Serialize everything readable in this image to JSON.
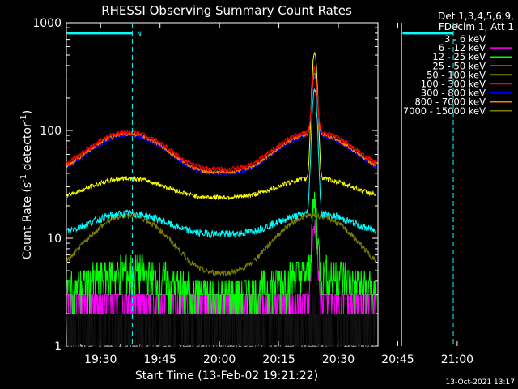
{
  "chart_data": {
    "type": "line",
    "title": "RHESSI Observing Summary Count Rates",
    "xlabel": "Start Time (13-Feb-02 19:21:22)",
    "ylabel_parts": [
      "Count Rate (s",
      "-1",
      " detector",
      "-1",
      ")"
    ],
    "yscale": "log",
    "ylim": [
      1,
      1000
    ],
    "xlim_min": [
      21.37,
      100
    ],
    "x_ticks": [
      {
        "m": 30,
        "label": "19:30"
      },
      {
        "m": 45,
        "label": "19:45"
      },
      {
        "m": 60,
        "label": "20:00"
      },
      {
        "m": 75,
        "label": "20:15"
      },
      {
        "m": 90,
        "label": "20:30"
      },
      {
        "m": 105,
        "label": "20:45"
      },
      {
        "m": 120,
        "label": "21:00"
      }
    ],
    "y_ticks": [
      {
        "v": 1,
        "label": "1"
      },
      {
        "v": 10,
        "label": "10"
      },
      {
        "v": 100,
        "label": "100"
      },
      {
        "v": 1000,
        "label": "1000"
      }
    ],
    "legend_header": [
      "Det 1,3,4,5,6,9,",
      "FDecim 1, Att 1"
    ],
    "legend_position": "top-right",
    "timestamp": "13-Oct-2021 13:17",
    "night_marker": "N",
    "night_intervals": [
      [
        21.4,
        38
      ],
      [
        106,
        119
      ]
    ],
    "flare_peak_min": 84,
    "series": [
      {
        "name": "3 - 6 keV",
        "color": "#000000",
        "base": 1.9,
        "amp": 0.0,
        "flare": 0.0,
        "noise": 0.55
      },
      {
        "name": "6 - 12 keV",
        "color": "#ff00ff",
        "base": 2.6,
        "amp": 0.0,
        "flare": 11,
        "noise": 0.25
      },
      {
        "name": "12 - 25 keV",
        "color": "#00ff00",
        "base": 3.0,
        "amp": 1.8,
        "flare": 16,
        "noise": 0.45
      },
      {
        "name": "25 - 50 keV",
        "color": "#00ffff",
        "base": 11,
        "amp": 6,
        "flare": 230,
        "noise": 0.08
      },
      {
        "name": "50 - 100 keV",
        "color": "#ffff00",
        "base": 24,
        "amp": 12,
        "flare": 500,
        "noise": 0.05
      },
      {
        "name": "100 - 300 keV",
        "color": "#ff0000",
        "base": 44,
        "amp": 53,
        "flare": 280,
        "noise": 0.05
      },
      {
        "name": "300 - 800 keV",
        "color": "#0000ff",
        "base": 40,
        "amp": 50,
        "flare": 230,
        "noise": 0.04
      },
      {
        "name": "800 - 7000 keV",
        "color": "#ff8000",
        "base": 41,
        "amp": 52,
        "flare": 240,
        "noise": 0.04
      },
      {
        "name": "7000 - 15000 keV",
        "color": "#808000",
        "base": 4.8,
        "amp": 11.5,
        "flare": 0,
        "noise": 0.06
      }
    ]
  }
}
